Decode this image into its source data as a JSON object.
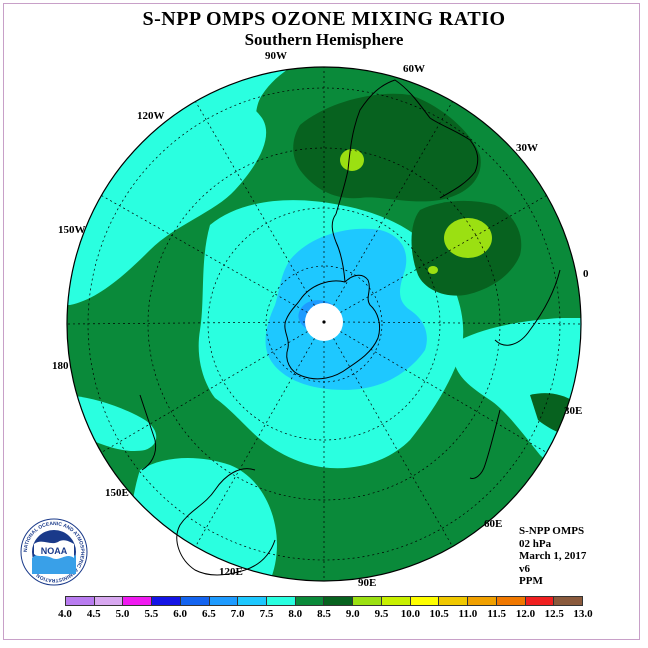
{
  "header": {
    "title": "S-NPP OMPS OZONE MIXING RATIO",
    "subtitle": "Southern Hemisphere"
  },
  "map": {
    "longitude_labels": [
      "90W",
      "60W",
      "30W",
      "0",
      "30E",
      "60E",
      "90E",
      "120E",
      "150E",
      "180",
      "150W",
      "120W"
    ],
    "field_colors": {
      "ppm_7_0_7_5": "#1ec8ff",
      "ppm_7_5_8_0": "#2affe0",
      "ppm_8_0_8_5": "#0a8a3a",
      "ppm_8_5_9_0": "#07621f",
      "ppm_9_0_9_5": "#9be012",
      "ppm_6_5_7_0": "#1e9bff"
    }
  },
  "info": {
    "instrument": "S-NPP OMPS",
    "level": "02 hPa",
    "date": "March 1, 2017",
    "version": "v6",
    "units": "PPM"
  },
  "colorbar": {
    "ticks": [
      "4.0",
      "4.5",
      "5.0",
      "5.5",
      "6.0",
      "6.5",
      "7.0",
      "7.5",
      "8.0",
      "8.5",
      "9.0",
      "9.5",
      "10.0",
      "10.5",
      "11.0",
      "11.5",
      "12.0",
      "12.5",
      "13.0"
    ],
    "colors": [
      "#b97cf0",
      "#d8a8f0",
      "#f01af0",
      "#1414e6",
      "#1464f0",
      "#1e9bff",
      "#1ec8ff",
      "#2affe0",
      "#0a8a3a",
      "#07621f",
      "#9be012",
      "#c8f000",
      "#ffff00",
      "#f0c800",
      "#f0a000",
      "#f07800",
      "#f02020",
      "#8a5a3c"
    ]
  },
  "logo": {
    "text": "NOAA",
    "ring_text": "NATIONAL OCEANIC AND ATMOSPHERIC ADMINISTRATION"
  }
}
